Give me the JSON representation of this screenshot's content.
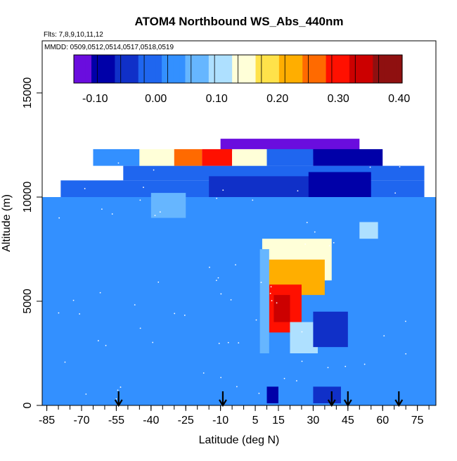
{
  "chart_data": {
    "type": "heatmap",
    "title": "ATOM4 Northbound WS_Abs_440nm",
    "flights_note": "Flts: 7,8,9,10,11,12",
    "date_note": "MMDD: 0509,0512,0514,0517,0518,0519",
    "xlabel": "Latitude (deg N)",
    "ylabel": "Altitude (m)",
    "xlim": [
      -87,
      83
    ],
    "ylim": [
      0,
      17500
    ],
    "x_ticks": [
      -85,
      -70,
      -55,
      -40,
      -25,
      -10,
      5,
      15,
      30,
      45,
      60,
      75
    ],
    "y_ticks": [
      0,
      5000,
      10000,
      15000
    ],
    "colorbar": {
      "ticks": [
        -0.1,
        0.0,
        0.1,
        0.2,
        0.3,
        0.4
      ],
      "tick_labels": [
        "-0.10",
        "0.00",
        "0.10",
        "0.20",
        "0.30",
        "0.40"
      ],
      "range": [
        -0.135,
        0.405
      ],
      "colors": [
        "#6a0dde",
        "#0000a8",
        "#1030c8",
        "#1f66ef",
        "#3390ff",
        "#66b6ff",
        "#aee0ff",
        "#ffffd8",
        "#ffe24a",
        "#ffae00",
        "#ff6a00",
        "#ff1000",
        "#cc0000",
        "#8f1010"
      ]
    },
    "grid": false,
    "arrows_latitude": [
      -54,
      -9,
      38,
      45,
      67
    ],
    "cells": [
      {
        "lat": [
          -87,
          83
        ],
        "alt": [
          0,
          10000
        ],
        "value": 0.02
      },
      {
        "lat": [
          -79,
          78
        ],
        "alt": [
          10000,
          10800
        ],
        "value": 0.0
      },
      {
        "lat": [
          -52,
          78
        ],
        "alt": [
          10800,
          11500
        ],
        "value": 0.01
      },
      {
        "lat": [
          -40,
          -25
        ],
        "alt": [
          9000,
          10200
        ],
        "value": 0.08
      },
      {
        "lat": [
          -15,
          30
        ],
        "alt": [
          10000,
          11000
        ],
        "value": -0.02
      },
      {
        "lat": [
          28,
          55
        ],
        "alt": [
          10000,
          11200
        ],
        "value": -0.08
      },
      {
        "lat": [
          10,
          45
        ],
        "alt": [
          11800,
          12300
        ],
        "value": 0.0
      },
      {
        "lat": [
          -10,
          50
        ],
        "alt": [
          12200,
          12800
        ],
        "value": -0.1
      },
      {
        "lat": [
          -65,
          -45
        ],
        "alt": [
          11500,
          12300
        ],
        "value": 0.02
      },
      {
        "lat": [
          -45,
          -30
        ],
        "alt": [
          11500,
          12300
        ],
        "value": 0.15
      },
      {
        "lat": [
          -30,
          -18
        ],
        "alt": [
          11500,
          12300
        ],
        "value": 0.26
      },
      {
        "lat": [
          -18,
          -5
        ],
        "alt": [
          11500,
          12300
        ],
        "value": 0.3
      },
      {
        "lat": [
          -5,
          10
        ],
        "alt": [
          11500,
          12300
        ],
        "value": 0.17
      },
      {
        "lat": [
          10,
          30
        ],
        "alt": [
          11500,
          12300
        ],
        "value": 0.0
      },
      {
        "lat": [
          30,
          60
        ],
        "alt": [
          11500,
          12300
        ],
        "value": -0.09
      },
      {
        "lat": [
          8,
          38
        ],
        "alt": [
          6000,
          8000
        ],
        "value": 0.15
      },
      {
        "lat": [
          10,
          35
        ],
        "alt": [
          5300,
          7000
        ],
        "value": 0.24
      },
      {
        "lat": [
          11,
          25
        ],
        "alt": [
          3500,
          5800
        ],
        "value": 0.3
      },
      {
        "lat": [
          13,
          20
        ],
        "alt": [
          4000,
          5300
        ],
        "value": 0.36
      },
      {
        "lat": [
          7,
          11
        ],
        "alt": [
          2500,
          7500
        ],
        "value": 0.08
      },
      {
        "lat": [
          20,
          32
        ],
        "alt": [
          2500,
          4000
        ],
        "value": 0.12
      },
      {
        "lat": [
          30,
          45
        ],
        "alt": [
          2800,
          4500
        ],
        "value": -0.02
      },
      {
        "lat": [
          30,
          42
        ],
        "alt": [
          100,
          900
        ],
        "value": -0.05
      },
      {
        "lat": [
          10,
          15
        ],
        "alt": [
          100,
          900
        ],
        "value": -0.08
      },
      {
        "lat": [
          50,
          58
        ],
        "alt": [
          8000,
          8800
        ],
        "value": 0.12
      }
    ]
  }
}
